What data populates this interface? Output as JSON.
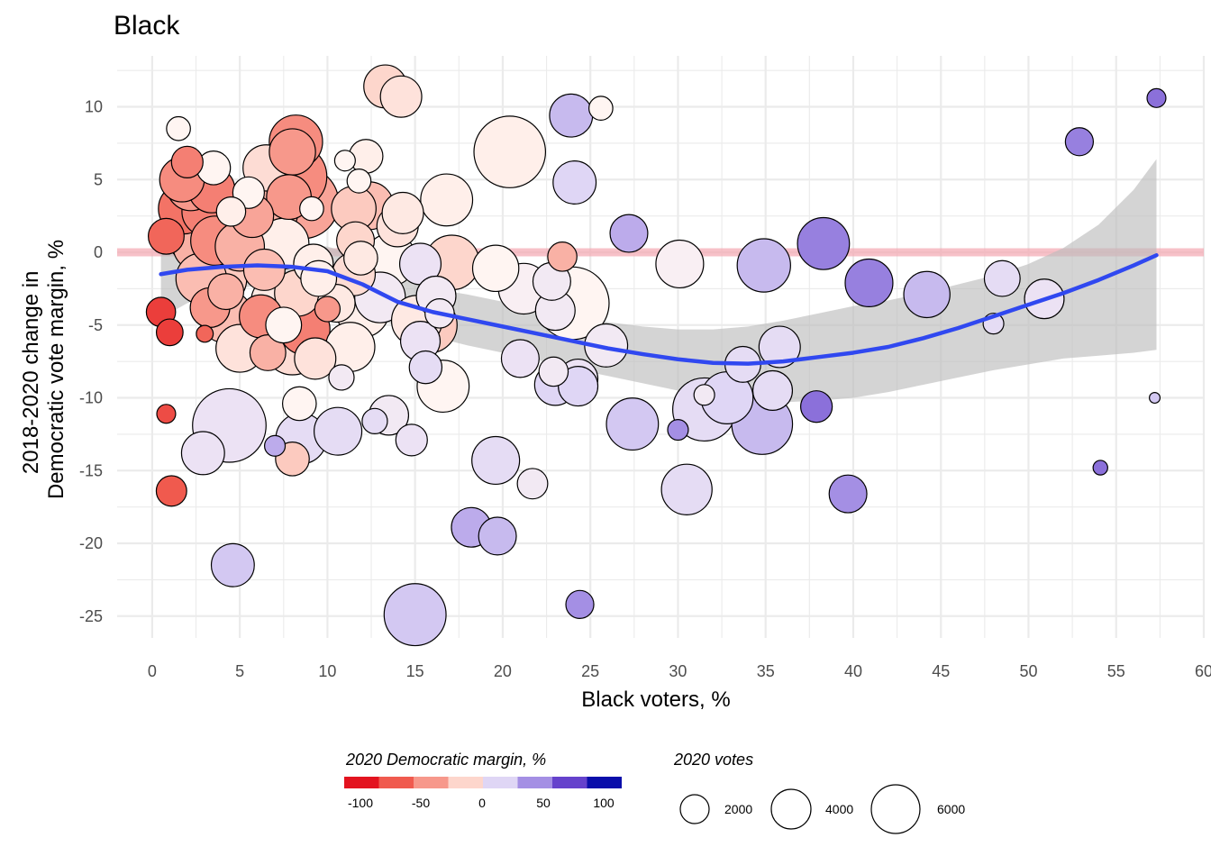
{
  "chart_data": {
    "type": "scatter",
    "title": "Black",
    "xlabel": "Black voters, %",
    "ylabel": [
      "2018-2020 change in",
      "Democratic vote margin, %"
    ],
    "xlim": [
      -2,
      60
    ],
    "ylim": [
      -26.5,
      13.5
    ],
    "x_ticks": [
      "0",
      "5",
      "10",
      "15",
      "20",
      "25",
      "30",
      "35",
      "40",
      "45",
      "50",
      "55",
      "60"
    ],
    "y_ticks": [
      "10",
      "5",
      "0",
      "-5",
      "-10",
      "-15",
      "-20",
      "-25"
    ],
    "reference_line_y": 0,
    "reference_line_color": "#f4a6b0",
    "smooth_color": "#3048f0",
    "band_color": "#bdbdbd",
    "point_size_variable": "2020 votes",
    "point_color_variable": "2020 Democratic margin, %",
    "points": [
      {
        "x": 0.5,
        "y": -4.1,
        "margin": -85,
        "votes": 600
      },
      {
        "x": 0.8,
        "y": -11.1,
        "margin": -80,
        "votes": 250
      },
      {
        "x": 1.0,
        "y": -5.5,
        "margin": -85,
        "votes": 500
      },
      {
        "x": 1.1,
        "y": -16.4,
        "margin": -75,
        "votes": 650
      },
      {
        "x": 0.8,
        "y": 1.1,
        "margin": -70,
        "votes": 900
      },
      {
        "x": 1.5,
        "y": 8.5,
        "margin": 0,
        "votes": 400
      },
      {
        "x": 1.7,
        "y": 5.0,
        "margin": -55,
        "votes": 1400
      },
      {
        "x": 1.8,
        "y": 3.0,
        "margin": -65,
        "votes": 1800
      },
      {
        "x": 2.0,
        "y": 6.2,
        "margin": -60,
        "votes": 700
      },
      {
        "x": 2.2,
        "y": 4.5,
        "margin": -50,
        "votes": 1600
      },
      {
        "x": 2.5,
        "y": 1.2,
        "margin": -45,
        "votes": 2400
      },
      {
        "x": 2.7,
        "y": 0.5,
        "margin": -40,
        "votes": 2000
      },
      {
        "x": 2.8,
        "y": -1.8,
        "margin": -35,
        "votes": 1800
      },
      {
        "x": 3.0,
        "y": -5.6,
        "margin": -70,
        "votes": 200
      },
      {
        "x": 2.9,
        "y": -13.8,
        "margin": 15,
        "votes": 1300
      },
      {
        "x": 3.1,
        "y": 2.8,
        "margin": -60,
        "votes": 1700
      },
      {
        "x": 3.3,
        "y": -3.8,
        "margin": -50,
        "votes": 1100
      },
      {
        "x": 3.5,
        "y": 5.8,
        "margin": 0,
        "votes": 800
      },
      {
        "x": 3.4,
        "y": 4.3,
        "margin": -60,
        "votes": 1500
      },
      {
        "x": 3.6,
        "y": 0.8,
        "margin": -55,
        "votes": 1700
      },
      {
        "x": 3.8,
        "y": -1.8,
        "margin": -30,
        "votes": 2200
      },
      {
        "x": 4.2,
        "y": -2.7,
        "margin": -40,
        "votes": 900
      },
      {
        "x": 4.4,
        "y": -11.9,
        "margin": 15,
        "votes": 3800
      },
      {
        "x": 4.2,
        "y": -4.4,
        "margin": -35,
        "votes": 2000
      },
      {
        "x": 4.5,
        "y": 2.8,
        "margin": -5,
        "votes": 600
      },
      {
        "x": 4.6,
        "y": -21.5,
        "margin": 30,
        "votes": 1300
      },
      {
        "x": 5.0,
        "y": 0.4,
        "margin": -40,
        "votes": 1700
      },
      {
        "x": 5.0,
        "y": -6.6,
        "margin": -15,
        "votes": 1600
      },
      {
        "x": 5.5,
        "y": 4.1,
        "margin": 0,
        "votes": 700
      },
      {
        "x": 5.7,
        "y": 2.5,
        "margin": -45,
        "votes": 1300
      },
      {
        "x": 5.8,
        "y": 1.3,
        "margin": -30,
        "votes": 2700
      },
      {
        "x": 6.2,
        "y": -4.4,
        "margin": -55,
        "votes": 1300
      },
      {
        "x": 6.4,
        "y": -1.2,
        "margin": -35,
        "votes": 1200
      },
      {
        "x": 6.5,
        "y": 5.8,
        "margin": -20,
        "votes": 1500
      },
      {
        "x": 6.6,
        "y": -6.9,
        "margin": -40,
        "votes": 900
      },
      {
        "x": 6.8,
        "y": 2.8,
        "margin": -40,
        "votes": 2000
      },
      {
        "x": 7.0,
        "y": -13.3,
        "margin": 40,
        "votes": 300
      },
      {
        "x": 7.2,
        "y": -3.4,
        "margin": -10,
        "votes": 2100
      },
      {
        "x": 7.5,
        "y": 0.6,
        "margin": -5,
        "votes": 1800
      },
      {
        "x": 7.5,
        "y": -5.0,
        "margin": 0,
        "votes": 900
      },
      {
        "x": 7.8,
        "y": 3.8,
        "margin": -50,
        "votes": 1400
      },
      {
        "x": 8.0,
        "y": -6.5,
        "margin": -20,
        "votes": 2200
      },
      {
        "x": 8.1,
        "y": 5.2,
        "margin": -55,
        "votes": 3000
      },
      {
        "x": 8.2,
        "y": 7.6,
        "margin": -55,
        "votes": 2000
      },
      {
        "x": 8.0,
        "y": 6.9,
        "margin": -50,
        "votes": 1500
      },
      {
        "x": 8.0,
        "y": -14.2,
        "margin": -30,
        "votes": 800
      },
      {
        "x": 8.3,
        "y": -2.8,
        "margin": -25,
        "votes": 1500
      },
      {
        "x": 8.4,
        "y": -10.4,
        "margin": 0,
        "votes": 800
      },
      {
        "x": 8.5,
        "y": -12.8,
        "margin": 20,
        "votes": 1800
      },
      {
        "x": 8.6,
        "y": 3.4,
        "margin": -45,
        "votes": 3600
      },
      {
        "x": 8.7,
        "y": -5.3,
        "margin": -60,
        "votes": 1800
      },
      {
        "x": 9.1,
        "y": 3.0,
        "margin": 0,
        "votes": 400
      },
      {
        "x": 9.2,
        "y": -0.8,
        "margin": -5,
        "votes": 1100
      },
      {
        "x": 9.3,
        "y": -7.3,
        "margin": -15,
        "votes": 1200
      },
      {
        "x": 9.5,
        "y": -1.8,
        "margin": -5,
        "votes": 900
      },
      {
        "x": 10.0,
        "y": -3.9,
        "margin": -50,
        "votes": 450
      },
      {
        "x": 10.5,
        "y": -3.5,
        "margin": -10,
        "votes": 1000
      },
      {
        "x": 10.6,
        "y": -12.3,
        "margin": 20,
        "votes": 1600
      },
      {
        "x": 10.8,
        "y": -8.6,
        "margin": 10,
        "votes": 450
      },
      {
        "x": 11.0,
        "y": 6.3,
        "margin": 0,
        "votes": 300
      },
      {
        "x": 11.3,
        "y": -6.5,
        "margin": -5,
        "votes": 1700
      },
      {
        "x": 11.5,
        "y": -1.5,
        "margin": -20,
        "votes": 1300
      },
      {
        "x": 11.5,
        "y": 3.0,
        "margin": -30,
        "votes": 1400
      },
      {
        "x": 11.6,
        "y": 0.8,
        "margin": -25,
        "votes": 1000
      },
      {
        "x": 11.8,
        "y": 4.9,
        "margin": 0,
        "votes": 400
      },
      {
        "x": 11.9,
        "y": -0.4,
        "margin": -10,
        "votes": 800
      },
      {
        "x": 12.0,
        "y": -4.0,
        "margin": -5,
        "votes": 2000
      },
      {
        "x": 12.2,
        "y": 6.6,
        "margin": -5,
        "votes": 800
      },
      {
        "x": 12.4,
        "y": 3.2,
        "margin": -35,
        "votes": 1600
      },
      {
        "x": 12.7,
        "y": -11.6,
        "margin": 20,
        "votes": 450
      },
      {
        "x": 13.0,
        "y": -3.1,
        "margin": 10,
        "votes": 1800
      },
      {
        "x": 13.3,
        "y": 11.4,
        "margin": -25,
        "votes": 1300
      },
      {
        "x": 13.5,
        "y": -11.2,
        "margin": 10,
        "votes": 1100
      },
      {
        "x": 13.6,
        "y": -0.5,
        "margin": 0,
        "votes": 1900
      },
      {
        "x": 14.0,
        "y": 1.8,
        "margin": -15,
        "votes": 1200
      },
      {
        "x": 14.2,
        "y": 10.7,
        "margin": -15,
        "votes": 1200
      },
      {
        "x": 14.3,
        "y": 2.7,
        "margin": -10,
        "votes": 1200
      },
      {
        "x": 14.8,
        "y": -12.9,
        "margin": 15,
        "votes": 700
      },
      {
        "x": 15.0,
        "y": -24.9,
        "margin": 30,
        "votes": 2700
      },
      {
        "x": 15.1,
        "y": -4.7,
        "margin": -10,
        "votes": 1800
      },
      {
        "x": 15.3,
        "y": -6.1,
        "margin": 15,
        "votes": 1100
      },
      {
        "x": 15.3,
        "y": -0.8,
        "margin": 15,
        "votes": 1200
      },
      {
        "x": 15.6,
        "y": -7.9,
        "margin": 20,
        "votes": 750
      },
      {
        "x": 15.8,
        "y": -5.0,
        "margin": -30,
        "votes": 2200
      },
      {
        "x": 16.2,
        "y": -3.0,
        "margin": 10,
        "votes": 1100
      },
      {
        "x": 16.4,
        "y": -4.2,
        "margin": 10,
        "votes": 600
      },
      {
        "x": 16.6,
        "y": -9.2,
        "margin": 0,
        "votes": 1900
      },
      {
        "x": 16.8,
        "y": 3.6,
        "margin": -5,
        "votes": 1900
      },
      {
        "x": 17.1,
        "y": -0.7,
        "margin": -25,
        "votes": 2100
      },
      {
        "x": 18.2,
        "y": -18.9,
        "margin": 40,
        "votes": 1100
      },
      {
        "x": 19.6,
        "y": -14.3,
        "margin": 20,
        "votes": 1600
      },
      {
        "x": 19.6,
        "y": -1.1,
        "margin": 0,
        "votes": 1500
      },
      {
        "x": 19.7,
        "y": -19.5,
        "margin": 35,
        "votes": 1000
      },
      {
        "x": 20.4,
        "y": 6.9,
        "margin": -5,
        "votes": 3600
      },
      {
        "x": 21.0,
        "y": -7.3,
        "margin": 15,
        "votes": 1000
      },
      {
        "x": 21.2,
        "y": -2.5,
        "margin": 5,
        "votes": 1800
      },
      {
        "x": 21.7,
        "y": -15.9,
        "margin": 10,
        "votes": 650
      },
      {
        "x": 22.8,
        "y": -2.0,
        "margin": 10,
        "votes": 1000
      },
      {
        "x": 22.9,
        "y": -8.2,
        "margin": 10,
        "votes": 600
      },
      {
        "x": 23.0,
        "y": -4.0,
        "margin": 10,
        "votes": 1100
      },
      {
        "x": 23.0,
        "y": -9.1,
        "margin": 25,
        "votes": 1200
      },
      {
        "x": 23.4,
        "y": -0.3,
        "margin": -40,
        "votes": 600
      },
      {
        "x": 23.9,
        "y": 9.4,
        "margin": 35,
        "votes": 1300
      },
      {
        "x": 24.0,
        "y": -3.5,
        "margin": 0,
        "votes": 3700
      },
      {
        "x": 24.1,
        "y": 4.8,
        "margin": 25,
        "votes": 1300
      },
      {
        "x": 24.3,
        "y": -8.7,
        "margin": 15,
        "votes": 1100
      },
      {
        "x": 24.3,
        "y": -9.2,
        "margin": 25,
        "votes": 1100
      },
      {
        "x": 24.4,
        "y": -24.2,
        "margin": 50,
        "votes": 550
      },
      {
        "x": 25.6,
        "y": 9.9,
        "margin": 0,
        "votes": 400
      },
      {
        "x": 25.9,
        "y": -6.4,
        "margin": 10,
        "votes": 1300
      },
      {
        "x": 27.2,
        "y": 1.3,
        "margin": 40,
        "votes": 1000
      },
      {
        "x": 27.4,
        "y": -11.8,
        "margin": 30,
        "votes": 1900
      },
      {
        "x": 30.0,
        "y": -12.2,
        "margin": 50,
        "votes": 300
      },
      {
        "x": 30.1,
        "y": -0.8,
        "margin": 5,
        "votes": 1600
      },
      {
        "x": 30.5,
        "y": -16.3,
        "margin": 20,
        "votes": 1800
      },
      {
        "x": 31.5,
        "y": -10.8,
        "margin": 20,
        "votes": 2800
      },
      {
        "x": 31.5,
        "y": -9.8,
        "margin": 10,
        "votes": 300
      },
      {
        "x": 32.8,
        "y": -10.0,
        "margin": 25,
        "votes": 1900
      },
      {
        "x": 33.7,
        "y": -7.7,
        "margin": 20,
        "votes": 900
      },
      {
        "x": 34.8,
        "y": -11.8,
        "margin": 35,
        "votes": 2600
      },
      {
        "x": 34.9,
        "y": -0.9,
        "margin": 35,
        "votes": 2000
      },
      {
        "x": 35.4,
        "y": -9.5,
        "margin": 20,
        "votes": 1100
      },
      {
        "x": 35.8,
        "y": -6.5,
        "margin": 20,
        "votes": 1200
      },
      {
        "x": 37.9,
        "y": -10.6,
        "margin": 60,
        "votes": 700
      },
      {
        "x": 38.3,
        "y": 0.6,
        "margin": 55,
        "votes": 1900
      },
      {
        "x": 39.7,
        "y": -16.6,
        "margin": 50,
        "votes": 1000
      },
      {
        "x": 40.9,
        "y": -2.1,
        "margin": 55,
        "votes": 1600
      },
      {
        "x": 44.2,
        "y": -2.9,
        "margin": 35,
        "votes": 1500
      },
      {
        "x": 48.0,
        "y": -4.9,
        "margin": 20,
        "votes": 300
      },
      {
        "x": 48.5,
        "y": -1.8,
        "margin": 20,
        "votes": 900
      },
      {
        "x": 50.9,
        "y": -3.2,
        "margin": 15,
        "votes": 1100
      },
      {
        "x": 52.9,
        "y": 7.6,
        "margin": 55,
        "votes": 550
      },
      {
        "x": 54.1,
        "y": -14.8,
        "margin": 60,
        "votes": 150
      },
      {
        "x": 57.2,
        "y": -10.0,
        "margin": 30,
        "votes": 80
      },
      {
        "x": 57.3,
        "y": 10.6,
        "margin": 60,
        "votes": 250
      }
    ],
    "smooth_line": [
      {
        "x": 0.5,
        "y": -1.5
      },
      {
        "x": 2,
        "y": -1.2
      },
      {
        "x": 4,
        "y": -1.0
      },
      {
        "x": 6,
        "y": -0.9
      },
      {
        "x": 8,
        "y": -1.0
      },
      {
        "x": 10,
        "y": -1.3
      },
      {
        "x": 12,
        "y": -2.2
      },
      {
        "x": 14,
        "y": -3.4
      },
      {
        "x": 16,
        "y": -4.1
      },
      {
        "x": 18,
        "y": -4.6
      },
      {
        "x": 20,
        "y": -5.1
      },
      {
        "x": 22,
        "y": -5.6
      },
      {
        "x": 24,
        "y": -6.1
      },
      {
        "x": 26,
        "y": -6.6
      },
      {
        "x": 28,
        "y": -7.0
      },
      {
        "x": 30,
        "y": -7.35
      },
      {
        "x": 32,
        "y": -7.6
      },
      {
        "x": 34,
        "y": -7.65
      },
      {
        "x": 36,
        "y": -7.5
      },
      {
        "x": 38,
        "y": -7.2
      },
      {
        "x": 40,
        "y": -6.9
      },
      {
        "x": 42,
        "y": -6.5
      },
      {
        "x": 44,
        "y": -5.9
      },
      {
        "x": 46,
        "y": -5.2
      },
      {
        "x": 48,
        "y": -4.4
      },
      {
        "x": 50,
        "y": -3.6
      },
      {
        "x": 52,
        "y": -2.8
      },
      {
        "x": 54,
        "y": -1.9
      },
      {
        "x": 56,
        "y": -0.9
      },
      {
        "x": 57.3,
        "y": -0.2
      }
    ],
    "band_upper": [
      {
        "x": 0.5,
        "y": 1.2
      },
      {
        "x": 2,
        "y": 0.9
      },
      {
        "x": 4,
        "y": 0.6
      },
      {
        "x": 6,
        "y": 0.5
      },
      {
        "x": 8,
        "y": 0.5
      },
      {
        "x": 10,
        "y": 0.4
      },
      {
        "x": 12,
        "y": -0.3
      },
      {
        "x": 14,
        "y": -1.8
      },
      {
        "x": 16,
        "y": -2.5
      },
      {
        "x": 18,
        "y": -2.9
      },
      {
        "x": 20,
        "y": -3.4
      },
      {
        "x": 22,
        "y": -3.9
      },
      {
        "x": 24,
        "y": -4.3
      },
      {
        "x": 26,
        "y": -4.8
      },
      {
        "x": 28,
        "y": -5.1
      },
      {
        "x": 30,
        "y": -5.3
      },
      {
        "x": 32,
        "y": -5.3
      },
      {
        "x": 34,
        "y": -5.1
      },
      {
        "x": 36,
        "y": -4.7
      },
      {
        "x": 38,
        "y": -4.2
      },
      {
        "x": 40,
        "y": -3.7
      },
      {
        "x": 42,
        "y": -3.3
      },
      {
        "x": 44,
        "y": -2.8
      },
      {
        "x": 46,
        "y": -2.2
      },
      {
        "x": 48,
        "y": -1.6
      },
      {
        "x": 50,
        "y": -0.8
      },
      {
        "x": 52,
        "y": 0.3
      },
      {
        "x": 54,
        "y": 1.9
      },
      {
        "x": 56,
        "y": 4.3
      },
      {
        "x": 57.3,
        "y": 6.4
      }
    ],
    "band_lower": [
      {
        "x": 0.5,
        "y": -4.5
      },
      {
        "x": 2,
        "y": -3.5
      },
      {
        "x": 4,
        "y": -2.6
      },
      {
        "x": 6,
        "y": -2.3
      },
      {
        "x": 8,
        "y": -2.5
      },
      {
        "x": 10,
        "y": -3.2
      },
      {
        "x": 12,
        "y": -4.1
      },
      {
        "x": 14,
        "y": -5.1
      },
      {
        "x": 16,
        "y": -5.8
      },
      {
        "x": 18,
        "y": -6.4
      },
      {
        "x": 20,
        "y": -6.9
      },
      {
        "x": 22,
        "y": -7.4
      },
      {
        "x": 24,
        "y": -8.0
      },
      {
        "x": 26,
        "y": -8.5
      },
      {
        "x": 28,
        "y": -9.0
      },
      {
        "x": 30,
        "y": -9.5
      },
      {
        "x": 32,
        "y": -9.9
      },
      {
        "x": 34,
        "y": -10.2
      },
      {
        "x": 36,
        "y": -10.3
      },
      {
        "x": 38,
        "y": -10.2
      },
      {
        "x": 40,
        "y": -10.0
      },
      {
        "x": 42,
        "y": -9.6
      },
      {
        "x": 44,
        "y": -9.1
      },
      {
        "x": 46,
        "y": -8.6
      },
      {
        "x": 48,
        "y": -8.1
      },
      {
        "x": 50,
        "y": -7.7
      },
      {
        "x": 52,
        "y": -7.3
      },
      {
        "x": 54,
        "y": -7.1
      },
      {
        "x": 56,
        "y": -6.9
      },
      {
        "x": 57.3,
        "y": -6.7
      }
    ]
  },
  "legends": {
    "color": {
      "title": "2020 Democratic margin, %",
      "bins": [
        "#e3131f",
        "#f05a4e",
        "#f7988b",
        "#fdd6cc",
        "#dfd6f5",
        "#a48fe4",
        "#6542cc",
        "#0a0eaa"
      ],
      "labels": [
        "-100",
        "-50",
        "0",
        "50",
        "100"
      ]
    },
    "size": {
      "title": "2020 votes",
      "entries": [
        {
          "label": "2000",
          "votes": 2000
        },
        {
          "label": "4000",
          "votes": 4000
        },
        {
          "label": "6000",
          "votes": 6000
        }
      ]
    }
  }
}
